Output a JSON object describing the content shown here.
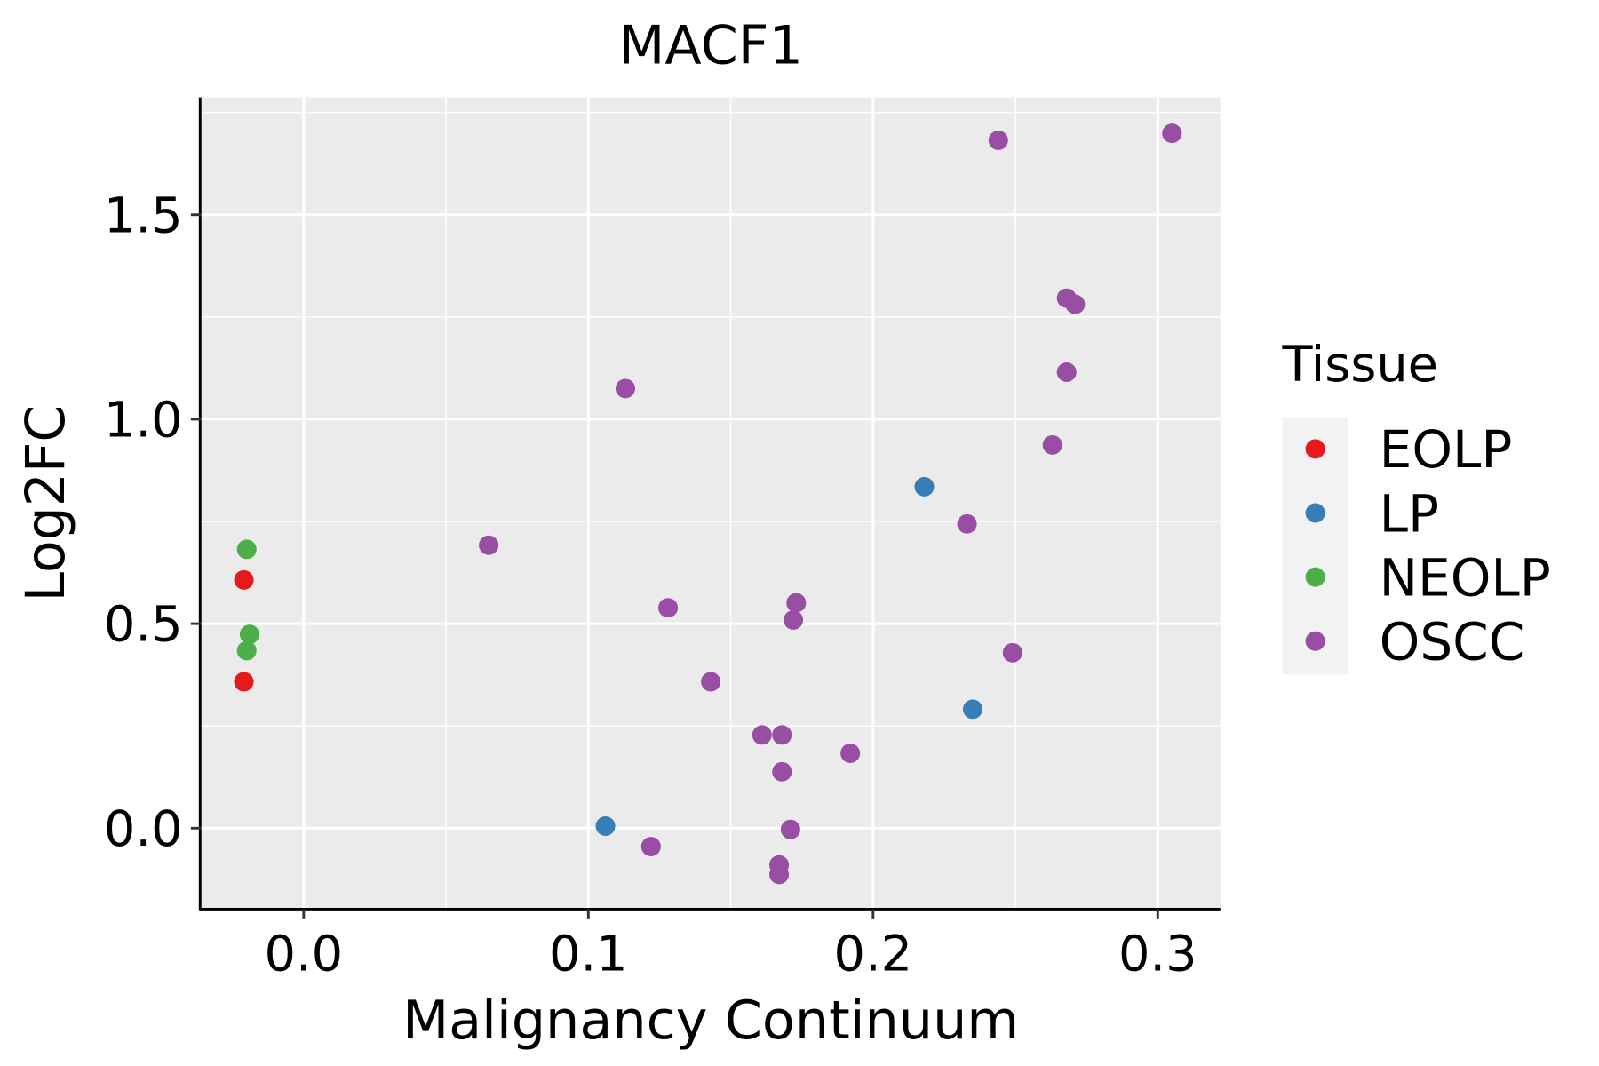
{
  "chart_data": {
    "type": "scatter",
    "title": "MACF1",
    "xlabel": "Malignancy Continuum",
    "ylabel": "Log2FC",
    "xlim": [
      -0.036,
      0.322
    ],
    "ylim": [
      -0.198,
      1.787
    ],
    "xticks": [
      0.0,
      0.1,
      0.2,
      0.3
    ],
    "xtick_labels": [
      "0.0",
      "0.1",
      "0.2",
      "0.3"
    ],
    "yticks": [
      0.0,
      0.5,
      1.0,
      1.5
    ],
    "ytick_labels": [
      "0.0",
      "0.5",
      "1.0",
      "1.5"
    ],
    "grid": true,
    "legend": {
      "title": "Tissue",
      "placement": "right"
    },
    "series": [
      {
        "name": "EOLP",
        "color": "#E41A1C",
        "points": [
          [
            -0.021,
            0.607
          ],
          [
            -0.021,
            0.358
          ]
        ]
      },
      {
        "name": "LP",
        "color": "#377EB8",
        "points": [
          [
            0.106,
            0.005
          ],
          [
            0.218,
            0.835
          ],
          [
            0.235,
            0.291
          ]
        ]
      },
      {
        "name": "NEOLP",
        "color": "#4DAF4A",
        "points": [
          [
            -0.02,
            0.682
          ],
          [
            -0.019,
            0.474
          ],
          [
            -0.02,
            0.434
          ]
        ]
      },
      {
        "name": "OSCC",
        "color": "#984EA3",
        "points": [
          [
            0.244,
            1.682
          ],
          [
            0.305,
            1.699
          ],
          [
            0.268,
            1.296
          ],
          [
            0.271,
            1.281
          ],
          [
            0.268,
            1.115
          ],
          [
            0.263,
            0.937
          ],
          [
            0.113,
            1.075
          ],
          [
            0.233,
            0.744
          ],
          [
            0.065,
            0.692
          ],
          [
            0.128,
            0.539
          ],
          [
            0.173,
            0.551
          ],
          [
            0.172,
            0.509
          ],
          [
            0.249,
            0.429
          ],
          [
            0.143,
            0.358
          ],
          [
            0.161,
            0.228
          ],
          [
            0.168,
            0.228
          ],
          [
            0.192,
            0.183
          ],
          [
            0.168,
            0.138
          ],
          [
            0.171,
            -0.003
          ],
          [
            0.122,
            -0.045
          ],
          [
            0.167,
            -0.09
          ],
          [
            0.167,
            -0.113
          ]
        ]
      }
    ]
  }
}
